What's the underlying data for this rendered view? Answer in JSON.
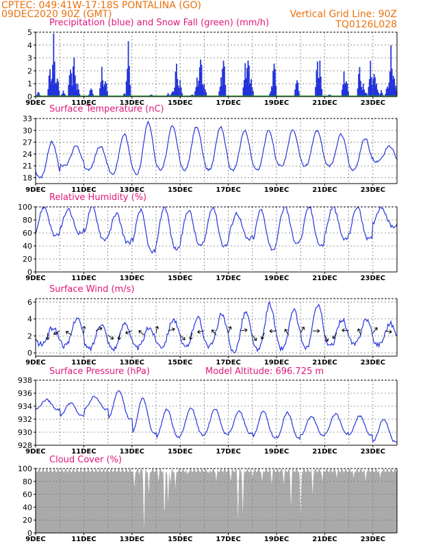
{
  "header": {
    "line1": "CPTEC:   049:41W-17:18S   PONTALINA (GO)",
    "line2": "09DEC2020 90Z (GMT)",
    "grid_note": "Vertical Grid Line: 90Z",
    "model_code": "TQ0126L028"
  },
  "colors": {
    "header": "#e8720c",
    "title": "#e0167a",
    "line": "#2233dd",
    "snow": "#22aa22",
    "cloud": "#aaaaaa"
  },
  "x_labels": [
    "9DEC",
    "11DEC",
    "13DEC",
    "15DEC",
    "17DEC",
    "19DEC",
    "21DEC",
    "23DEC"
  ],
  "chart_data": [
    {
      "type": "bar",
      "title": "Precipitation (blue) and Snow Fall (green) (mm/h)",
      "ylim": [
        0,
        5
      ],
      "yticks": [
        0,
        1,
        2,
        3,
        4,
        5
      ],
      "x_range_days": [
        9,
        24
      ],
      "series": [
        {
          "name": "Precipitation",
          "peaks": [
            [
              9.1,
              0.5
            ],
            [
              9.6,
              2.5
            ],
            [
              9.75,
              4.9
            ],
            [
              9.9,
              1.8
            ],
            [
              10.15,
              0.5
            ],
            [
              10.45,
              3.0
            ],
            [
              10.6,
              3.6
            ],
            [
              10.75,
              1.0
            ],
            [
              11.3,
              0.8
            ],
            [
              11.75,
              2.5
            ],
            [
              11.9,
              1.7
            ],
            [
              12.7,
              0.3
            ],
            [
              12.85,
              4.3
            ],
            [
              13.8,
              0.2
            ],
            [
              14.5,
              0.3
            ],
            [
              14.7,
              0.6
            ],
            [
              14.85,
              3.0
            ],
            [
              15.0,
              1.3
            ],
            [
              15.5,
              0.2
            ],
            [
              15.7,
              1.6
            ],
            [
              15.85,
              4.1
            ],
            [
              16.0,
              1.2
            ],
            [
              16.7,
              1.5
            ],
            [
              16.8,
              3.6
            ],
            [
              17.7,
              2.8
            ],
            [
              17.82,
              4.0
            ],
            [
              17.95,
              1.6
            ],
            [
              18.8,
              0.8
            ],
            [
              18.9,
              3.3
            ],
            [
              19.75,
              0.1
            ],
            [
              19.85,
              1.8
            ],
            [
              20.7,
              3.2
            ],
            [
              20.8,
              2.8
            ],
            [
              21.2,
              0.2
            ],
            [
              21.8,
              2.1
            ],
            [
              21.9,
              1.7
            ],
            [
              22.45,
              2.7
            ],
            [
              22.6,
              1.0
            ],
            [
              22.7,
              0.4
            ],
            [
              22.9,
              3.0
            ],
            [
              23.05,
              2.5
            ],
            [
              23.15,
              1.2
            ],
            [
              23.35,
              0.5
            ],
            [
              23.6,
              1.0
            ],
            [
              23.75,
              4.3
            ],
            [
              23.85,
              2.3
            ],
            [
              23.95,
              1.0
            ]
          ]
        },
        {
          "name": "Snow Fall",
          "value": 0
        }
      ]
    },
    {
      "type": "line",
      "title": "Surface Temperature (nC)",
      "ylim": [
        16.5,
        33
      ],
      "yticks": [
        18,
        21,
        24,
        27,
        30,
        33
      ],
      "daily_min": [
        18,
        21,
        20,
        19,
        19,
        20,
        20,
        20,
        20,
        20,
        21,
        21,
        21,
        20,
        22
      ],
      "daily_max": [
        27,
        26,
        26,
        29,
        32,
        31,
        31,
        31,
        30,
        30,
        30,
        30,
        29,
        28,
        26
      ]
    },
    {
      "type": "line",
      "title": "Relative Humidity (%)",
      "ylim": [
        0,
        100
      ],
      "yticks": [
        0,
        20,
        40,
        60,
        80,
        100
      ],
      "daily_min": [
        55,
        60,
        50,
        45,
        30,
        35,
        40,
        40,
        50,
        35,
        45,
        40,
        50,
        50,
        70
      ],
      "daily_max": [
        100,
        95,
        100,
        90,
        95,
        100,
        95,
        100,
        90,
        95,
        100,
        100,
        100,
        100,
        100
      ]
    },
    {
      "type": "line",
      "title": "Surface Wind (m/s)",
      "ylim": [
        -0.4,
        6.4
      ],
      "yticks": [
        0,
        2,
        4,
        6
      ],
      "daily_min": [
        1.0,
        0.8,
        0.5,
        0.5,
        0.6,
        0.8,
        0.7,
        0.8,
        0.2,
        0.3,
        0.5,
        0.6,
        0.8,
        1.0,
        1.0
      ],
      "daily_max": [
        3.0,
        4.2,
        3.5,
        3.6,
        3.0,
        4.0,
        4.2,
        4.5,
        4.8,
        5.8,
        5.0,
        5.8,
        4.0,
        4.0,
        3.5
      ]
    },
    {
      "type": "line",
      "title": "Surface Pressure (hPa)",
      "model_altitude": "Model Altitude: 696.725 m",
      "ylim": [
        928,
        938
      ],
      "yticks": [
        928,
        930,
        932,
        934,
        936,
        938
      ],
      "daily_min": [
        933.5,
        932.5,
        933.5,
        932.0,
        929.8,
        929.2,
        929.6,
        929.7,
        929.8,
        929.2,
        929.0,
        929.5,
        929.8,
        929.5,
        928.5
      ],
      "daily_max": [
        935.0,
        934.5,
        935.5,
        936.5,
        935.2,
        933.5,
        933.8,
        933.5,
        933.2,
        933.2,
        933.0,
        932.5,
        932.8,
        932.5,
        932.0
      ]
    },
    {
      "type": "area",
      "title": "Cloud Cover (%)",
      "ylim": [
        0,
        100
      ],
      "yticks": [
        0,
        20,
        40,
        60,
        80,
        100
      ],
      "dips": [
        [
          13.1,
          70
        ],
        [
          13.3,
          90
        ],
        [
          13.5,
          5
        ],
        [
          13.7,
          60
        ],
        [
          14.1,
          80
        ],
        [
          14.35,
          20
        ],
        [
          14.5,
          45
        ],
        [
          14.6,
          75
        ],
        [
          14.8,
          70
        ],
        [
          15.3,
          90
        ],
        [
          16.2,
          92
        ],
        [
          16.5,
          80
        ],
        [
          17.1,
          80
        ],
        [
          17.4,
          20
        ],
        [
          17.6,
          30
        ],
        [
          18.0,
          85
        ],
        [
          18.4,
          80
        ],
        [
          18.8,
          75
        ],
        [
          19.3,
          75
        ],
        [
          19.6,
          40
        ],
        [
          20.0,
          20
        ],
        [
          20.5,
          60
        ],
        [
          20.9,
          80
        ],
        [
          21.5,
          85
        ],
        [
          22.2,
          85
        ],
        [
          22.7,
          80
        ],
        [
          23.3,
          85
        ]
      ]
    }
  ]
}
